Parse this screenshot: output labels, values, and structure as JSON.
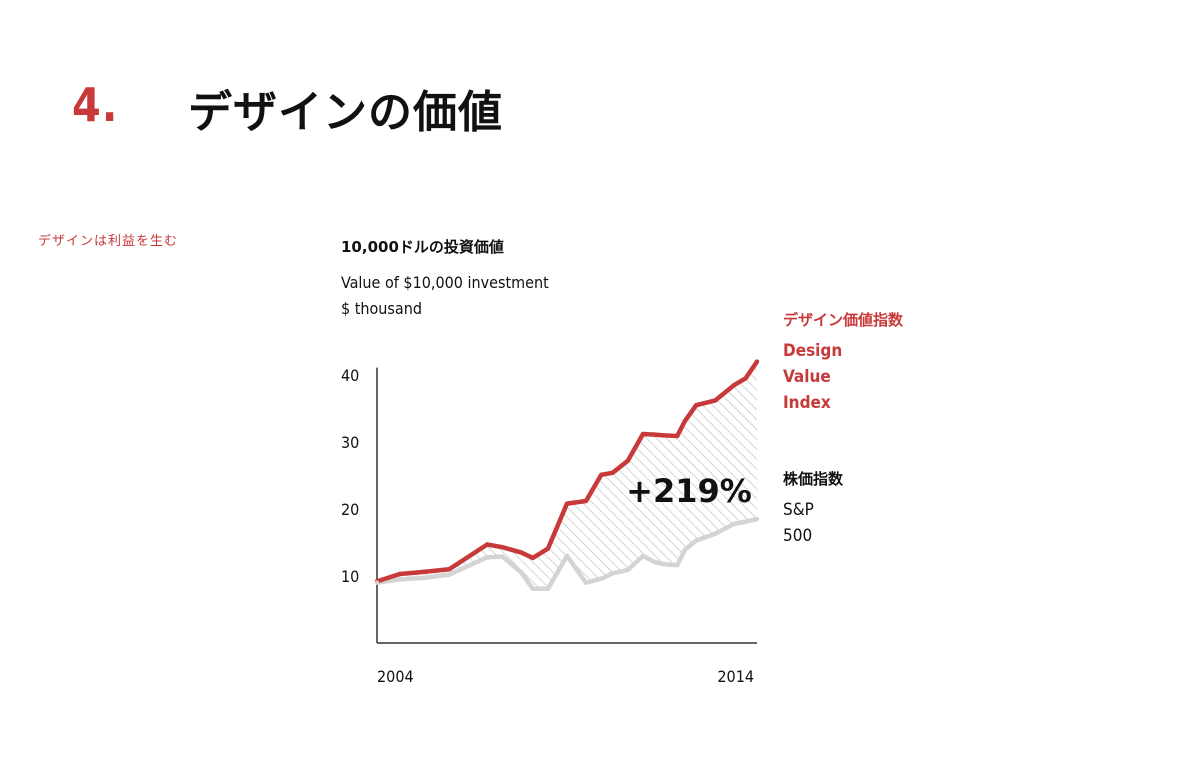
{
  "header": {
    "section_number": "4.",
    "title": "デザインの価値"
  },
  "side_note": "デザインは利益を生む",
  "chart_text": {
    "title_ja": "10,000ドルの投資価値",
    "title_en_line1": "Value of $10,000 investment",
    "title_en_line2": "$ thousand"
  },
  "legend": {
    "dvi_ja": "デザイン価値指数",
    "dvi_en": "Design\nValue\nIndex",
    "sp_ja": "株価指数",
    "sp_en": "S&P\n500"
  },
  "colors": {
    "design_value_index": "#c8393a",
    "sp500": "#d4d4d4",
    "axis": "#333333",
    "hatch": "#bdbdbd"
  },
  "chart_data": {
    "type": "line",
    "x_label_start": "2004",
    "x_label_end": "2014",
    "xlim": [
      2004,
      2014
    ],
    "ylim": [
      0,
      42
    ],
    "yticks": [
      10,
      20,
      30,
      40
    ],
    "grid": false,
    "annotation": "+219%",
    "fill_between": "hatched",
    "series": [
      {
        "name": "Design Value Index",
        "x": [
          2004.0,
          2004.6,
          2005.2,
          2005.9,
          2006.9,
          2007.3,
          2007.8,
          2008.1,
          2008.5,
          2009.0,
          2009.5,
          2009.9,
          2010.2,
          2010.6,
          2011.0,
          2011.3,
          2011.5,
          2011.9,
          2012.1,
          2012.4,
          2012.9,
          2013.4,
          2013.7,
          2014.0
        ],
        "values": [
          9.2,
          10.3,
          10.6,
          11.0,
          14.7,
          14.3,
          13.5,
          12.7,
          14.1,
          20.8,
          21.2,
          25.1,
          25.4,
          27.2,
          31.2,
          31.1,
          31.0,
          30.9,
          33.1,
          35.5,
          36.2,
          38.5,
          39.5,
          42.0
        ]
      },
      {
        "name": "S&P 500",
        "x": [
          2004.0,
          2004.6,
          2005.2,
          2005.9,
          2006.9,
          2007.3,
          2007.8,
          2008.1,
          2008.5,
          2009.0,
          2009.5,
          2009.9,
          2010.2,
          2010.6,
          2011.0,
          2011.3,
          2011.5,
          2011.9,
          2012.1,
          2012.4,
          2012.9,
          2013.4,
          2013.7,
          2014.0
        ],
        "values": [
          9.0,
          9.5,
          9.7,
          10.2,
          12.8,
          12.9,
          10.5,
          8.1,
          8.1,
          13.0,
          9.0,
          9.6,
          10.4,
          10.9,
          13.0,
          12.1,
          11.8,
          11.6,
          13.9,
          15.3,
          16.3,
          17.8,
          18.1,
          18.5
        ]
      }
    ]
  }
}
